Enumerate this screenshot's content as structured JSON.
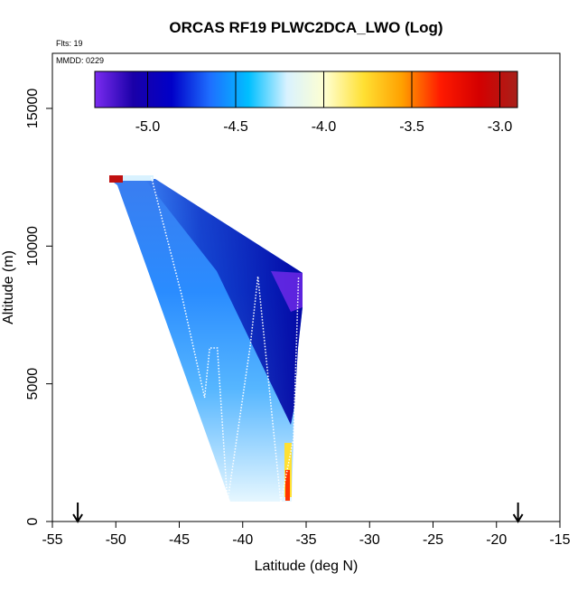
{
  "chart_data": {
    "type": "heatmap",
    "title": "ORCAS RF19 PLWC2DCA_LWO (Log)",
    "annotations": {
      "flights": "Flts: 19",
      "date": "MMDD: 0229"
    },
    "xlabel": "Latitude (deg N)",
    "ylabel": "Altitude (m)",
    "xlim": [
      -55,
      -15
    ],
    "ylim": [
      0,
      17000
    ],
    "x_ticks": [
      -55,
      -50,
      -45,
      -40,
      -35,
      -30,
      -25,
      -20,
      -15
    ],
    "x_tick_labels": [
      "-55",
      "-50",
      "-45",
      "-40",
      "-35",
      "-30",
      "-25",
      "-20",
      "-15"
    ],
    "y_ticks": [
      0,
      5000,
      10000,
      15000
    ],
    "y_tick_labels": [
      "0",
      "5000",
      "10000",
      "15000"
    ],
    "colorbar": {
      "range": [
        -5.3,
        -2.9
      ],
      "ticks": [
        -5.0,
        -4.5,
        -4.0,
        -3.5,
        -3.0
      ],
      "tick_labels": [
        "-5.0",
        "-4.5",
        "-4.0",
        "-3.5",
        "-3.0"
      ],
      "colors": [
        "#7b2cf0",
        "#1a00a8",
        "#0000c8",
        "#1e6fff",
        "#00bfff",
        "#d9f2ff",
        "#ffffd0",
        "#ffe033",
        "#ffa000",
        "#ff1a00",
        "#d40000",
        "#a8201a"
      ]
    },
    "flight_track": {
      "latitude": [
        -47.2,
        -44.8,
        -43.0,
        -42.6,
        -42.0,
        -41.2,
        -39.4,
        -38.8,
        -37.0,
        -36.0,
        -35.6
      ],
      "altitude": [
        12500,
        8200,
        4500,
        6300,
        6300,
        700,
        6400,
        8900,
        700,
        3000,
        8900
      ]
    },
    "endpoint_markers": {
      "latitude": [
        -53.0,
        -18.3
      ]
    },
    "grid": false
  }
}
